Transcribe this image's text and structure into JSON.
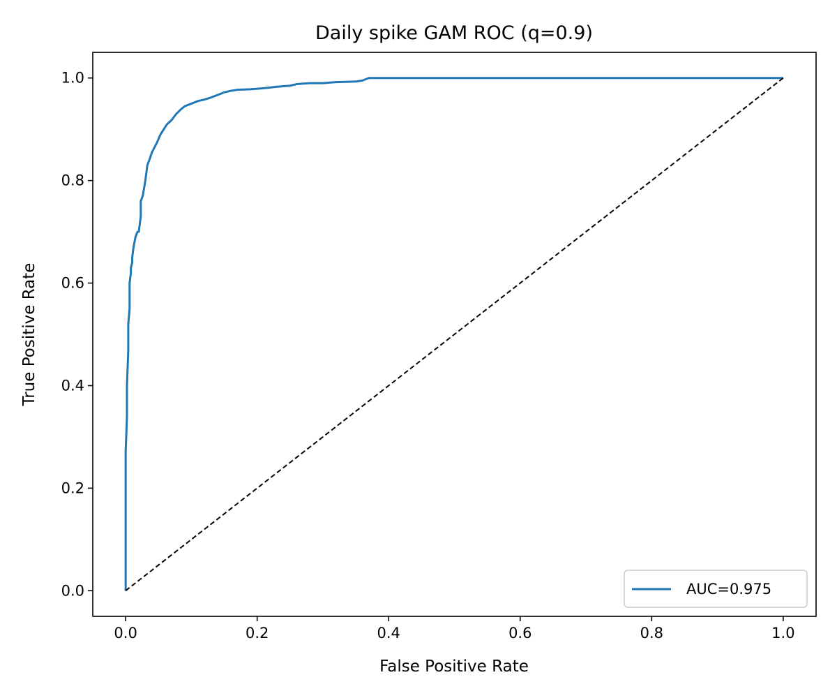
{
  "chart_data": {
    "type": "line",
    "title": "Daily spike GAM ROC (q=0.9)",
    "xlabel": "False Positive Rate",
    "ylabel": "True Positive Rate",
    "xlim": [
      -0.05,
      1.05
    ],
    "ylim": [
      -0.05,
      1.05
    ],
    "xticks": [
      0.0,
      0.2,
      0.4,
      0.6,
      0.8,
      1.0
    ],
    "xtick_labels": [
      "0.0",
      "0.2",
      "0.4",
      "0.6",
      "0.8",
      "1.0"
    ],
    "yticks": [
      0.0,
      0.2,
      0.4,
      0.6,
      0.8,
      1.0
    ],
    "ytick_labels": [
      "0.0",
      "0.2",
      "0.4",
      "0.6",
      "0.8",
      "1.0"
    ],
    "grid": false,
    "legend": {
      "position": "lower-right",
      "entries": [
        "AUC=0.975"
      ]
    },
    "colors": {
      "roc": "#1f77b4",
      "diagonal": "#000000",
      "axes": "#000000"
    },
    "series": [
      {
        "name": "AUC=0.975",
        "style": "solid",
        "x": [
          0.0,
          0.0,
          0.002,
          0.002,
          0.004,
          0.004,
          0.006,
          0.006,
          0.008,
          0.008,
          0.01,
          0.01,
          0.012,
          0.015,
          0.018,
          0.02,
          0.023,
          0.023,
          0.026,
          0.03,
          0.033,
          0.036,
          0.04,
          0.044,
          0.048,
          0.053,
          0.058,
          0.063,
          0.07,
          0.077,
          0.085,
          0.09,
          0.1,
          0.11,
          0.12,
          0.13,
          0.14,
          0.15,
          0.16,
          0.17,
          0.19,
          0.21,
          0.23,
          0.25,
          0.26,
          0.28,
          0.3,
          0.32,
          0.35,
          0.36,
          0.37,
          0.4,
          0.5,
          0.6,
          0.7,
          0.8,
          0.9,
          1.0
        ],
        "y": [
          0.0,
          0.27,
          0.34,
          0.4,
          0.47,
          0.52,
          0.55,
          0.6,
          0.62,
          0.63,
          0.64,
          0.65,
          0.67,
          0.69,
          0.7,
          0.7,
          0.73,
          0.76,
          0.77,
          0.8,
          0.83,
          0.84,
          0.855,
          0.865,
          0.875,
          0.89,
          0.9,
          0.91,
          0.918,
          0.93,
          0.94,
          0.945,
          0.95,
          0.955,
          0.958,
          0.962,
          0.967,
          0.972,
          0.975,
          0.977,
          0.978,
          0.98,
          0.983,
          0.985,
          0.988,
          0.99,
          0.99,
          0.992,
          0.993,
          0.995,
          1.0,
          1.0,
          1.0,
          1.0,
          1.0,
          1.0,
          1.0,
          1.0
        ]
      },
      {
        "name": "",
        "style": "dashed",
        "x": [
          0.0,
          1.0
        ],
        "y": [
          0.0,
          1.0
        ]
      }
    ]
  }
}
